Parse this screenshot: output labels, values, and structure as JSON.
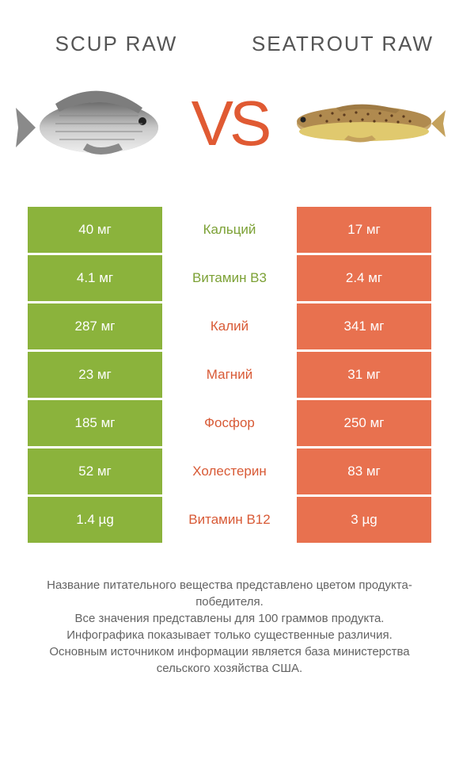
{
  "header": {
    "left_title": "SCUP RAW",
    "right_title": "SEATROUT RAW",
    "vs": "VS"
  },
  "colors": {
    "left_bg": "#8bb33c",
    "right_bg": "#e8714f",
    "left_text": "#7ca135",
    "right_text": "#d85a36"
  },
  "rows": [
    {
      "left": "40 мг",
      "label": "Кальций",
      "right": "17 мг",
      "winner": "left"
    },
    {
      "left": "4.1 мг",
      "label": "Витамин B3",
      "right": "2.4 мг",
      "winner": "left"
    },
    {
      "left": "287 мг",
      "label": "Калий",
      "right": "341 мг",
      "winner": "right"
    },
    {
      "left": "23 мг",
      "label": "Магний",
      "right": "31 мг",
      "winner": "right"
    },
    {
      "left": "185 мг",
      "label": "Фосфор",
      "right": "250 мг",
      "winner": "right"
    },
    {
      "left": "52 мг",
      "label": "Холестерин",
      "right": "83 мг",
      "winner": "right"
    },
    {
      "left": "1.4 µg",
      "label": "Витамин B12",
      "right": "3 µg",
      "winner": "right"
    }
  ],
  "footer": {
    "line1": "Название питательного вещества представлено цветом продукта-победителя.",
    "line2": "Все значения представлены для 100 граммов продукта.",
    "line3": "Инфографика показывает только существенные различия.",
    "line4": "Основным источником информации является база министерства сельского хозяйства США."
  }
}
